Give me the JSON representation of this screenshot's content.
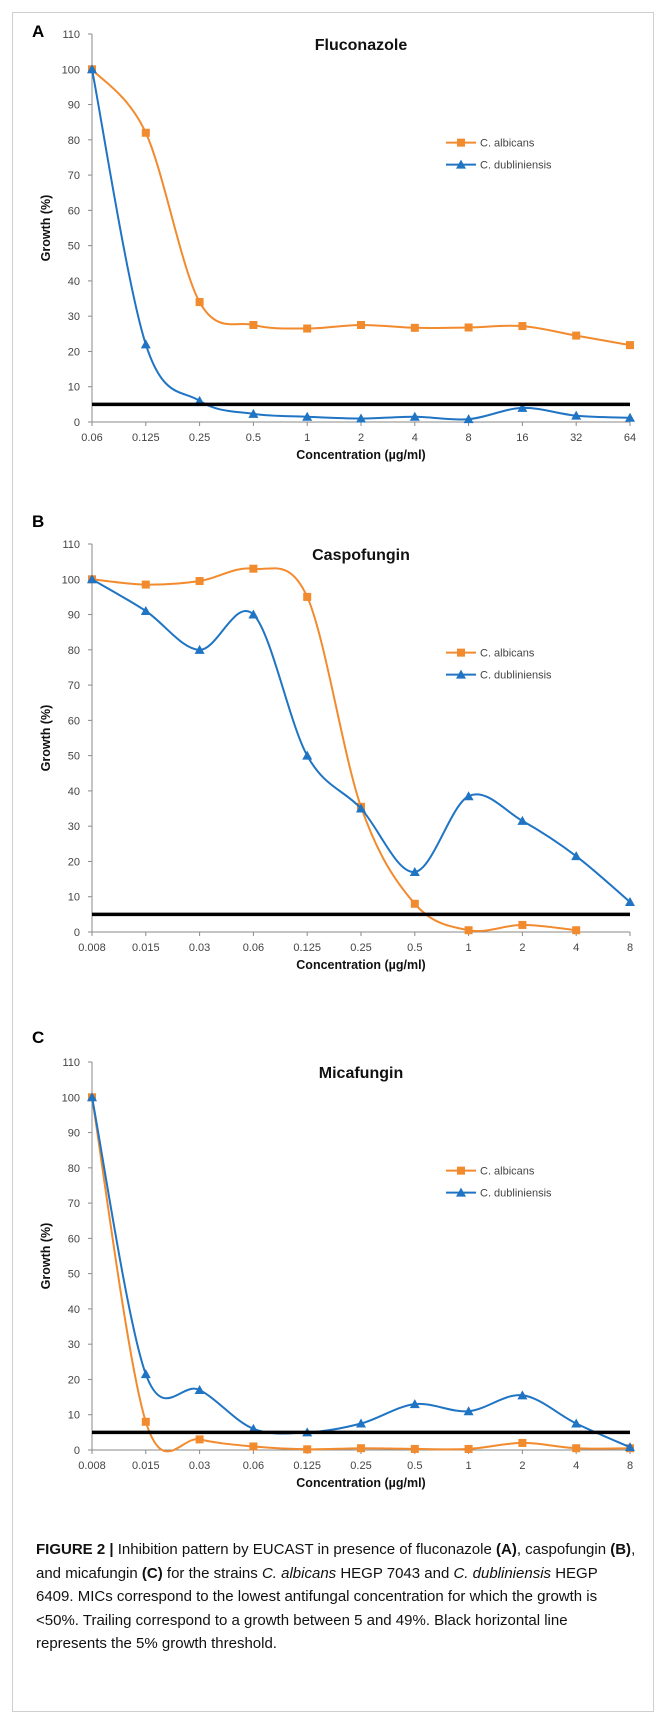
{
  "panels": [
    {
      "letter": "A",
      "chart_data": {
        "type": "line",
        "title": "Fluconazole",
        "xlabel": "Concentration (µg/ml)",
        "ylabel": "Growth (%)",
        "categories": [
          "0.06",
          "0.125",
          "0.25",
          "0.5",
          "1",
          "2",
          "4",
          "8",
          "16",
          "32",
          "64"
        ],
        "ylim": [
          0,
          110
        ],
        "yticks": [
          0,
          10,
          20,
          30,
          40,
          50,
          60,
          70,
          80,
          90,
          100,
          110
        ],
        "threshold": 5,
        "legend_position": "right",
        "series": [
          {
            "name": "C. albicans",
            "color": "#f28a2e",
            "marker": "square",
            "values": [
              100,
              82,
              34,
              27.5,
              26.5,
              27.5,
              26.7,
              26.8,
              27.2,
              24.5,
              21.8
            ]
          },
          {
            "name": "C. dubliniensis",
            "color": "#1f74c3",
            "marker": "triangle",
            "values": [
              100,
              22,
              6,
              2.3,
              1.5,
              1.0,
              1.5,
              0.8,
              4.0,
              1.8,
              1.2
            ]
          }
        ]
      }
    },
    {
      "letter": "B",
      "chart_data": {
        "type": "line",
        "title": "Caspofungin",
        "xlabel": "Concentration (µg/ml)",
        "ylabel": "Growth (%)",
        "categories": [
          "0.008",
          "0.015",
          "0.03",
          "0.06",
          "0.125",
          "0.25",
          "0.5",
          "1",
          "2",
          "4",
          "8"
        ],
        "ylim": [
          0,
          110
        ],
        "yticks": [
          0,
          10,
          20,
          30,
          40,
          50,
          60,
          70,
          80,
          90,
          100,
          110
        ],
        "threshold": 5,
        "legend_position": "right",
        "series": [
          {
            "name": "C. albicans",
            "color": "#f28a2e",
            "marker": "square",
            "values": [
              100,
              98.5,
              99.5,
              103,
              95,
              35.5,
              8,
              0.5,
              2,
              0.5,
              null
            ]
          },
          {
            "name": "C. dubliniensis",
            "color": "#1f74c3",
            "marker": "triangle",
            "values": [
              100,
              91,
              80,
              90,
              50,
              35,
              17,
              38.5,
              31.5,
              21.5,
              8.5
            ]
          }
        ]
      }
    },
    {
      "letter": "C",
      "chart_data": {
        "type": "line",
        "title": "Micafungin",
        "xlabel": "Concentration (µg/ml)",
        "ylabel": "Growth (%)",
        "categories": [
          "0.008",
          "0.015",
          "0.03",
          "0.06",
          "0.125",
          "0.25",
          "0.5",
          "1",
          "2",
          "4",
          "8"
        ],
        "ylim": [
          0,
          110
        ],
        "yticks": [
          0,
          10,
          20,
          30,
          40,
          50,
          60,
          70,
          80,
          90,
          100,
          110
        ],
        "threshold": 5,
        "legend_position": "right",
        "series": [
          {
            "name": "C. albicans",
            "color": "#f28a2e",
            "marker": "square",
            "values": [
              100,
              8,
              3,
              1,
              0.2,
              0.5,
              0.3,
              0.3,
              2,
              0.5,
              0.5
            ]
          },
          {
            "name": "C. dubliniensis",
            "color": "#1f74c3",
            "marker": "triangle",
            "values": [
              100,
              21.5,
              17,
              6,
              5,
              7.5,
              13,
              11,
              15.5,
              7.5,
              0.8
            ]
          }
        ]
      }
    }
  ],
  "caption": {
    "label": "FIGURE 2 |",
    "t1": " Inhibition pattern by EUCAST in presence of fluconazole ",
    "a": "(A)",
    "t2": ", caspofungin ",
    "b": "(B)",
    "t3": ", and micafungin ",
    "c": "(C)",
    "t4": " for the strains ",
    "sp1": "C. albicans",
    "t5": " HEGP 7043 and ",
    "sp2": "C. dubliniensis",
    "t6": " HEGP 6409. MICs correspond to the lowest antifungal concentration for which the growth is <50%. Trailing correspond to a growth between 5 and 49%. Black horizontal line represents the 5% growth threshold."
  }
}
